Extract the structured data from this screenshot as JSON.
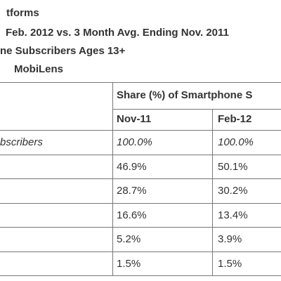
{
  "header": {
    "lines": [
      "tforms",
      "Feb. 2012 vs. 3 Month Avg. Ending Nov. 2011",
      "ne Subscribers Ages 13+",
      "MobiLens"
    ]
  },
  "table": {
    "group_header": "Share (%) of Smartphone S",
    "columns": [
      "Nov-11",
      "Feb-12"
    ],
    "rows": [
      {
        "label": "bscribers",
        "cells": [
          "100.0%",
          "100.0%"
        ]
      },
      {
        "cells": [
          "46.9%",
          "50.1%"
        ]
      },
      {
        "cells": [
          "28.7%",
          "30.2%"
        ]
      },
      {
        "cells": [
          "16.6%",
          "13.4%"
        ]
      },
      {
        "cells": [
          "5.2%",
          "3.9%"
        ]
      },
      {
        "cells": [
          "1.5%",
          "1.5%"
        ]
      }
    ]
  }
}
